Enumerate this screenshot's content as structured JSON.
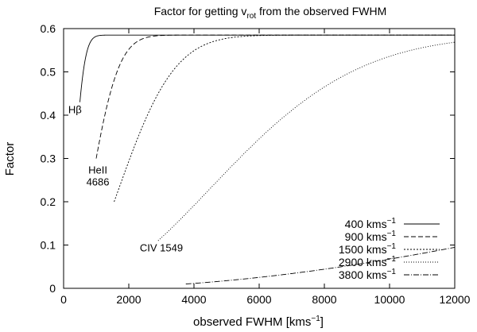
{
  "chart_data": {
    "type": "line",
    "title_parts": [
      "Factor for getting v",
      "rot",
      " from the observed FWHM"
    ],
    "xlabel_parts": [
      "observed FWHM [kms",
      "−1",
      "]"
    ],
    "ylabel": "Factor",
    "xlim": [
      0,
      12000
    ],
    "ylim": [
      0,
      0.6
    ],
    "x_ticks": [
      0,
      2000,
      4000,
      6000,
      8000,
      10000,
      12000
    ],
    "y_ticks": [
      0,
      0.1,
      0.2,
      0.3,
      0.4,
      0.5,
      0.6
    ],
    "x_tick_labels": [
      "0",
      "2000",
      "4000",
      "6000",
      "8000",
      "10000",
      "12000"
    ],
    "y_tick_labels": [
      "0",
      "0.1",
      "0.2",
      "0.3",
      "0.4",
      "0.5",
      "0.6"
    ],
    "asymptote": 0.585,
    "grid": false,
    "legend_position": "bottom-right",
    "series": [
      {
        "name_parts": [
          "400 kms",
          "−1"
        ],
        "x_start": 500,
        "y_start": 0.43,
        "dash": ""
      },
      {
        "name_parts": [
          "900 kms",
          "−1"
        ],
        "x_start": 1000,
        "y_start": 0.3,
        "dash": "6,3"
      },
      {
        "name_parts": [
          "1500 kms",
          "−1"
        ],
        "x_start": 1550,
        "y_start": 0.2,
        "dash": "2,2"
      },
      {
        "name_parts": [
          "2900 kms",
          "−1"
        ],
        "x_start": 2900,
        "y_start": 0.11,
        "dash": "1,2"
      },
      {
        "name_parts": [
          "3800 kms",
          "−1"
        ],
        "x_start": 3750,
        "y_start": 0.01,
        "dash": "7,2,1,2"
      }
    ],
    "annotations": [
      {
        "name": "hbeta",
        "lines": [
          "Hβ"
        ],
        "x": 350,
        "y": 0.405
      },
      {
        "name": "heii-4686",
        "lines": [
          "HeII",
          "4686"
        ],
        "x": 1050,
        "y": 0.265
      },
      {
        "name": "civ-1549",
        "lines": [
          "CIV 1549"
        ],
        "x": 3000,
        "y": 0.085
      }
    ]
  }
}
